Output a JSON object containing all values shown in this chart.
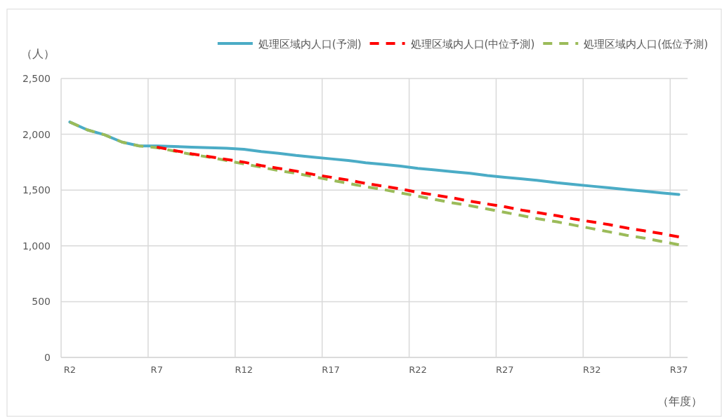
{
  "chart_data": {
    "type": "line",
    "xlabel": "（年度）",
    "ylabel": "（人）",
    "categories": [
      "R2",
      null,
      null,
      null,
      null,
      "R7",
      null,
      null,
      null,
      null,
      "R12",
      null,
      null,
      null,
      null,
      "R17",
      null,
      null,
      null,
      null,
      "R22",
      null,
      null,
      null,
      null,
      "R27",
      null,
      null,
      null,
      null,
      "R32",
      null,
      null,
      null,
      null,
      "R37"
    ],
    "ylim": [
      0,
      2500
    ],
    "yticks": [
      {
        "value": 0,
        "label": "0"
      },
      {
        "value": 500,
        "label": "500"
      },
      {
        "value": 1000,
        "label": "1,000"
      },
      {
        "value": 1500,
        "label": "1,500"
      },
      {
        "value": 2000,
        "label": "2,000"
      },
      {
        "value": 2500,
        "label": "2,500"
      }
    ],
    "grid": true,
    "legend": "top right",
    "marker": "none",
    "series": [
      {
        "name": "処理区域内人口(予測)",
        "color": "#4bacc6",
        "line_style": "solid",
        "values": [
          2110,
          2040,
          1995,
          1930,
          1895,
          1895,
          1890,
          1885,
          1880,
          1875,
          1865,
          1845,
          1830,
          1810,
          1795,
          1780,
          1765,
          1745,
          1730,
          1715,
          1695,
          1680,
          1665,
          1650,
          1630,
          1615,
          1600,
          1585,
          1565,
          1550,
          1535,
          1520,
          1505,
          1490,
          1475,
          1460
        ]
      },
      {
        "name": "処理区域内人口(中位予測)",
        "color": "#ff0000",
        "line_style": "dashed",
        "values": [
          null,
          null,
          null,
          null,
          null,
          1885,
          1855,
          1825,
          1800,
          1775,
          1750,
          1720,
          1695,
          1670,
          1640,
          1615,
          1590,
          1560,
          1535,
          1510,
          1480,
          1455,
          1430,
          1400,
          1375,
          1350,
          1320,
          1295,
          1270,
          1240,
          1215,
          1190,
          1160,
          1135,
          1110,
          1080
        ]
      },
      {
        "name": "処理区域内人口(低位予測)",
        "color": "#9bbb59",
        "line_style": "dashed",
        "values": [
          2110,
          2040,
          1995,
          1930,
          1895,
          1880,
          1850,
          1820,
          1795,
          1765,
          1735,
          1705,
          1675,
          1650,
          1620,
          1590,
          1560,
          1530,
          1505,
          1475,
          1445,
          1415,
          1385,
          1360,
          1330,
          1300,
          1270,
          1240,
          1215,
          1185,
          1155,
          1125,
          1095,
          1070,
          1040,
          1010
        ]
      }
    ]
  }
}
